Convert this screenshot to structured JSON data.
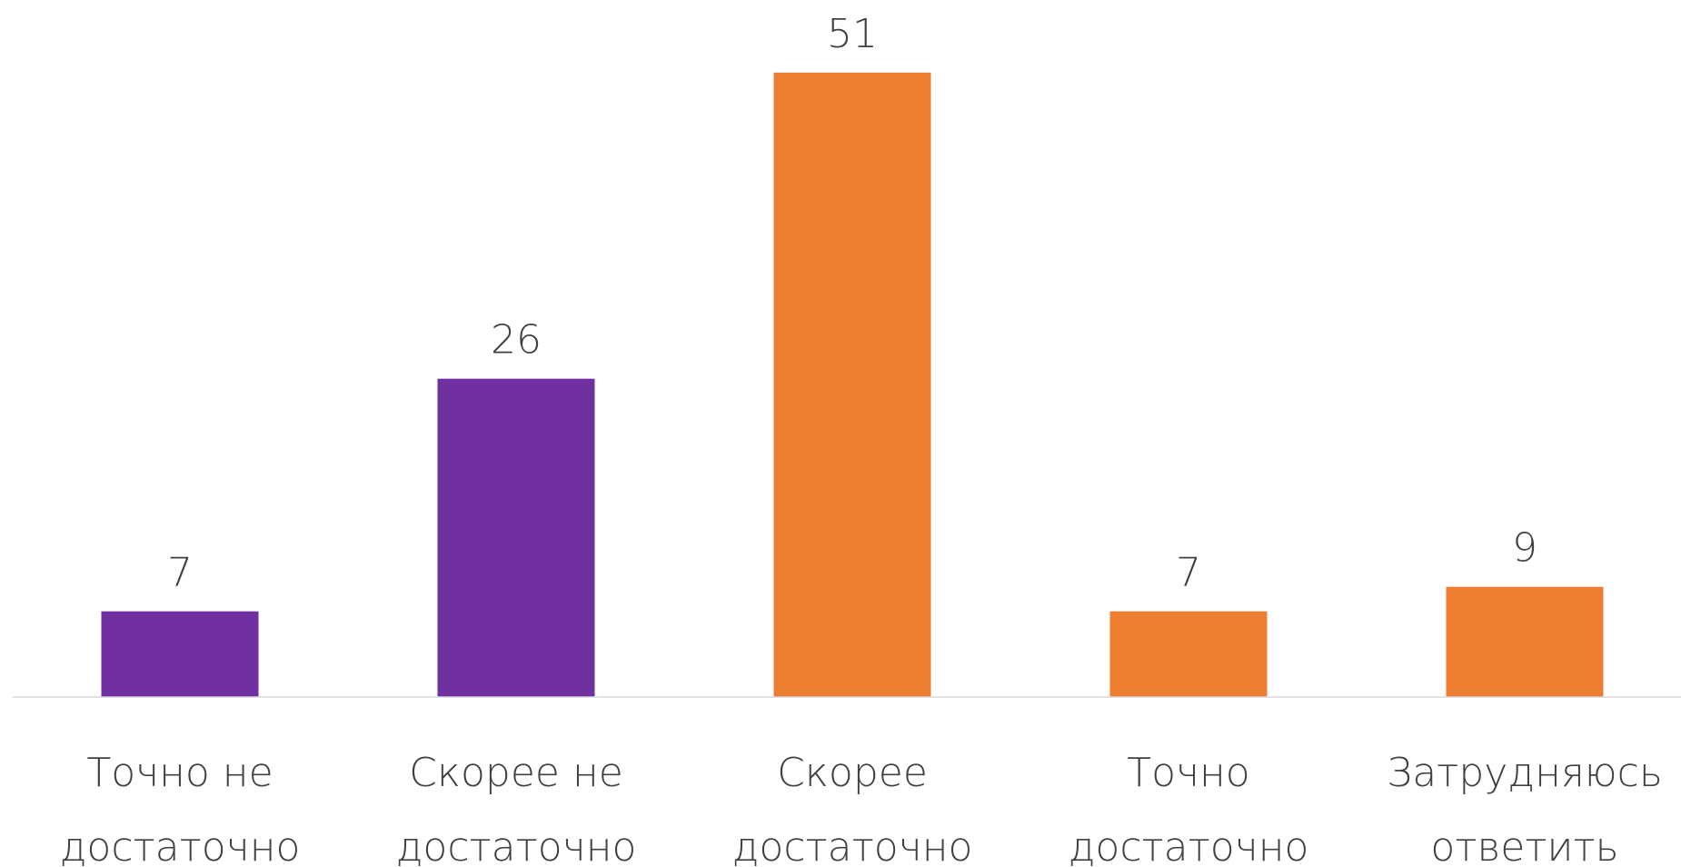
{
  "chart_data": {
    "type": "bar",
    "categories": [
      "Точно не достаточно",
      "Скорее не достаточно",
      "Скорее достаточно",
      "Точно достаточно",
      "Затрудняюсь ответить"
    ],
    "values": [
      7,
      26,
      51,
      7,
      9
    ],
    "colors": [
      "#7030a0",
      "#7030a0",
      "#ed7d31",
      "#ed7d31",
      "#ed7d31"
    ],
    "ylim": [
      0,
      55
    ]
  }
}
